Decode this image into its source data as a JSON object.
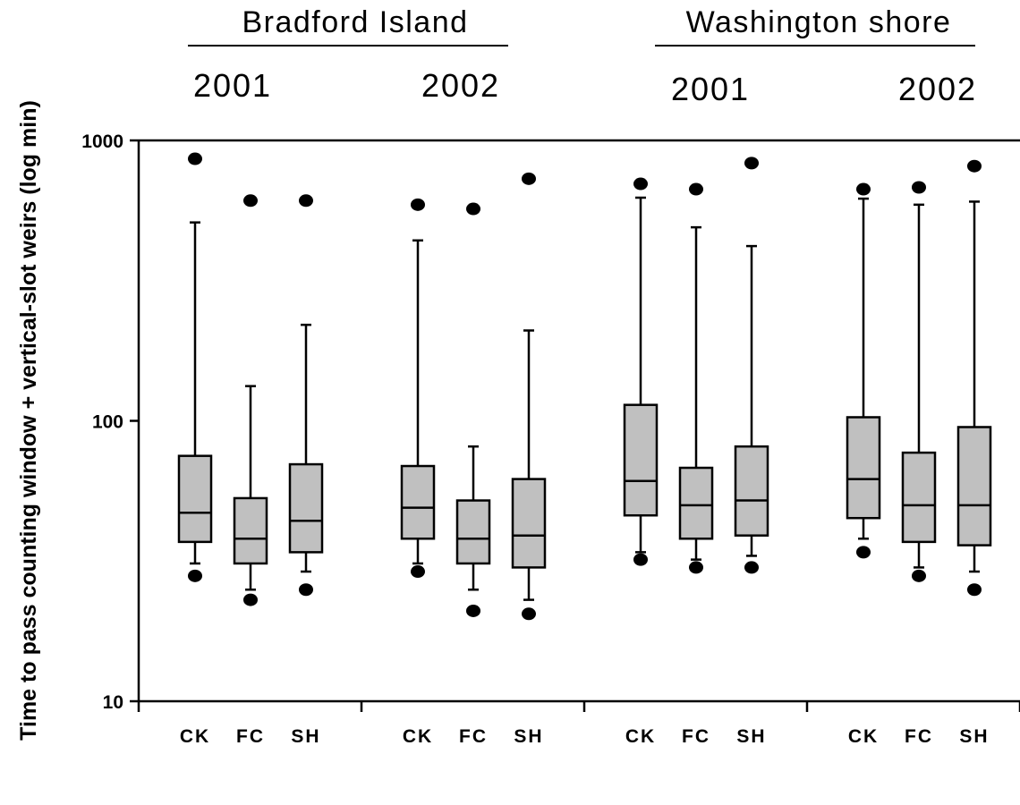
{
  "chart_data": {
    "type": "box",
    "ylabel": "Time to pass counting window + vertical-slot weirs (log min)",
    "yscale": "log",
    "ylim": [
      10,
      1000
    ],
    "yticks": [
      {
        "value": 10,
        "label": "10"
      },
      {
        "value": 100,
        "label": "100"
      },
      {
        "value": 1000,
        "label": "1000"
      }
    ],
    "sites": [
      {
        "name": "Bradford Island",
        "years": [
          "2001",
          "2002"
        ]
      },
      {
        "name": "Washington shore",
        "years": [
          "2001",
          "2002"
        ]
      }
    ],
    "groups": [
      {
        "site": "Bradford Island",
        "year": "2001",
        "boxes": [
          {
            "label": "CK",
            "q1": 37,
            "median": 47,
            "q3": 75,
            "whisker_low": 31,
            "whisker_high": 510,
            "outliers": [
              28,
              860
            ]
          },
          {
            "label": "FC",
            "q1": 31,
            "median": 38,
            "q3": 53,
            "whisker_low": 25,
            "whisker_high": 133,
            "outliers": [
              23,
              610
            ]
          },
          {
            "label": "SH",
            "q1": 34,
            "median": 44,
            "q3": 70,
            "whisker_low": 29,
            "whisker_high": 220,
            "outliers": [
              25,
              610
            ]
          }
        ]
      },
      {
        "site": "Bradford Island",
        "year": "2002",
        "boxes": [
          {
            "label": "CK",
            "q1": 38,
            "median": 49,
            "q3": 69,
            "whisker_low": 31,
            "whisker_high": 440,
            "outliers": [
              29,
              590
            ]
          },
          {
            "label": "FC",
            "q1": 31,
            "median": 38,
            "q3": 52,
            "whisker_low": 25,
            "whisker_high": 81,
            "outliers": [
              21,
              570
            ]
          },
          {
            "label": "SH",
            "q1": 30,
            "median": 39,
            "q3": 62,
            "whisker_low": 23,
            "whisker_high": 210,
            "outliers": [
              20.5,
              730
            ]
          }
        ]
      },
      {
        "site": "Washington shore",
        "year": "2001",
        "boxes": [
          {
            "label": "CK",
            "q1": 46,
            "median": 61,
            "q3": 114,
            "whisker_low": 34,
            "whisker_high": 625,
            "outliers": [
              32,
              700
            ]
          },
          {
            "label": "FC",
            "q1": 38,
            "median": 50,
            "q3": 68,
            "whisker_low": 32,
            "whisker_high": 490,
            "outliers": [
              30,
              670
            ]
          },
          {
            "label": "SH",
            "q1": 39,
            "median": 52,
            "q3": 81,
            "whisker_low": 33,
            "whisker_high": 420,
            "outliers": [
              30,
              830
            ]
          }
        ]
      },
      {
        "site": "Washington shore",
        "year": "2002",
        "boxes": [
          {
            "label": "CK",
            "q1": 45,
            "median": 62,
            "q3": 103,
            "whisker_low": 38,
            "whisker_high": 620,
            "outliers": [
              34,
              670
            ]
          },
          {
            "label": "FC",
            "q1": 37,
            "median": 50,
            "q3": 77,
            "whisker_low": 30,
            "whisker_high": 590,
            "outliers": [
              28,
              680
            ]
          },
          {
            "label": "SH",
            "q1": 36,
            "median": 50,
            "q3": 95,
            "whisker_low": 29,
            "whisker_high": 605,
            "outliers": [
              25,
              810
            ]
          }
        ]
      }
    ],
    "colors": {
      "box_fill": "#c0c0c0",
      "stroke": "#000000",
      "outlier": "#000000"
    },
    "grid": false,
    "legend": "none"
  }
}
